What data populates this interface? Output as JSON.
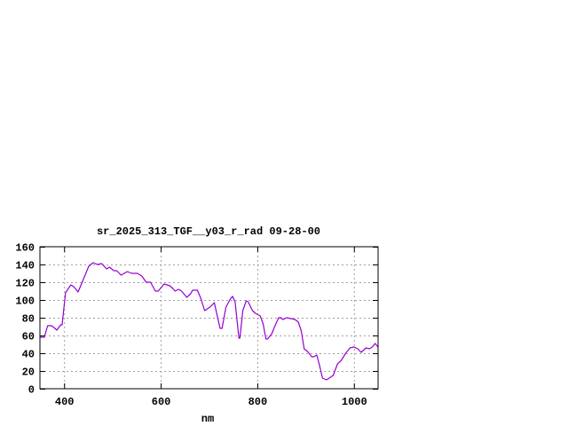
{
  "chart_data": {
    "type": "line",
    "title": "sr_2025_313_TGF__y03_r_rad 09-28-00",
    "xlabel": "nm",
    "ylabel": "",
    "xlim": [
      350,
      1050
    ],
    "ylim": [
      0,
      160
    ],
    "xticks": [
      400,
      600,
      800,
      1000
    ],
    "yticks": [
      0,
      20,
      40,
      60,
      80,
      100,
      120,
      140,
      160
    ],
    "grid": true,
    "legend": "none",
    "series": [
      {
        "color": "#9400d3",
        "x": [
          350,
          359,
          366,
          374,
          379,
          385,
          393,
          396,
          403,
          414,
          420,
          429,
          439,
          451,
          460,
          469,
          478,
          488,
          494,
          503,
          509,
          518,
          531,
          540,
          552,
          561,
          570,
          579,
          589,
          595,
          607,
          619,
          625,
          630,
          637,
          643,
          654,
          662,
          666,
          676,
          683,
          691,
          702,
          711,
          717,
          723,
          727,
          735,
          745,
          749,
          754,
          762,
          764,
          770,
          777,
          781,
          790,
          796,
          806,
          812,
          818,
          821,
          830,
          836,
          844,
          849,
          853,
          861,
          870,
          878,
          885,
          891,
          897,
          904,
          913,
          917,
          923,
          928,
          935,
          943,
          949,
          957,
          966,
          974,
          983,
          992,
          1000,
          1008,
          1015,
          1025,
          1032,
          1038,
          1044,
          1050
        ],
        "y": [
          58,
          58,
          71,
          71,
          69,
          66,
          72,
          72,
          108,
          117,
          115,
          109,
          122,
          138,
          142,
          140,
          141,
          135,
          137,
          133,
          133,
          128,
          132,
          130,
          130,
          127,
          120,
          120,
          110,
          110,
          118,
          116,
          113,
          110,
          112,
          110,
          103,
          107,
          111,
          111,
          102,
          88,
          92,
          97,
          82,
          68,
          68,
          92,
          102,
          104,
          98,
          57,
          57,
          88,
          99,
          98,
          88,
          85,
          82,
          73,
          56,
          56,
          62,
          70,
          80,
          80,
          78,
          80,
          79,
          78,
          75,
          65,
          45,
          42,
          36,
          36,
          38,
          28,
          12,
          10,
          12,
          15,
          28,
          32,
          40,
          46,
          47,
          45,
          41,
          46,
          45,
          47,
          51,
          47
        ]
      }
    ]
  }
}
